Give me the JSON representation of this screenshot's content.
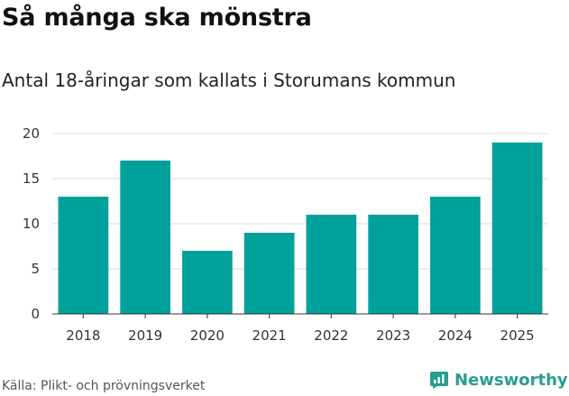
{
  "chart_data": {
    "type": "bar",
    "title": "Så många ska mönstra",
    "subtitle": "Antal 18-åringar som kallats i Storumans kommun",
    "categories": [
      "2018",
      "2019",
      "2020",
      "2021",
      "2022",
      "2023",
      "2024",
      "2025"
    ],
    "values": [
      13,
      17,
      7,
      9,
      11,
      11,
      13,
      19
    ],
    "ylim": [
      0,
      20
    ],
    "yticks": [
      0,
      5,
      10,
      15,
      20
    ],
    "bar_color": "#00a19a",
    "grid": true
  },
  "footer": {
    "source": "Källa: Plikt- och prövningsverket",
    "brand": "Newsworthy",
    "brand_color": "#2a9d8f"
  }
}
